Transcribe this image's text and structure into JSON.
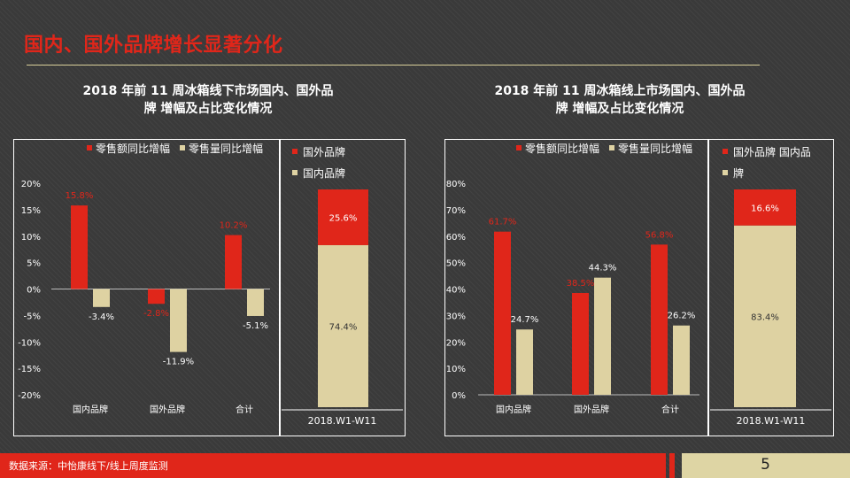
{
  "page": {
    "title": "国内、国外品牌增长显著分化",
    "source": "数据来源：中怡康线下/线上周度监测",
    "page_number": "5"
  },
  "colors": {
    "red": "#e0261a",
    "cream": "#ded2a2"
  },
  "chart_data": [
    {
      "type": "bar",
      "title": "2018 年前 11 周冰箱线下市场国内、国外品牌 增幅及占比变化情况",
      "title_lines": [
        "2018 年前 11 周冰箱线下市场国内、国外品",
        "牌 增幅及占比变化情况"
      ],
      "categories": [
        "国内品牌",
        "国外品牌",
        "合计"
      ],
      "series": [
        {
          "name": "零售额同比增幅",
          "values": [
            15.8,
            -2.8,
            10.2
          ],
          "labels": [
            "15.8%",
            "-2.8%",
            "10.2%"
          ]
        },
        {
          "name": "零售量同比增幅",
          "values": [
            -3.4,
            -11.9,
            -5.1
          ],
          "labels": [
            "-3.4%",
            "-11.9%",
            "-5.1%"
          ]
        }
      ],
      "yticks": [
        "20%",
        "15%",
        "10%",
        "5%",
        "0%",
        "-5%",
        "-10%",
        "-15%",
        "-20%"
      ],
      "ylim": [
        -20,
        20
      ],
      "share": {
        "type": "stacked-bar",
        "category": "2018.W1-W11",
        "legend": [
          "国外品牌",
          "国内品牌"
        ],
        "top": {
          "name": "国外品牌",
          "value": 25.6,
          "label": "25.6%"
        },
        "bottom": {
          "name": "国内品牌",
          "value": 74.4,
          "label": "74.4%"
        }
      }
    },
    {
      "type": "bar",
      "title": "2018 年前 11 周冰箱线上市场国内、国外品牌 增幅及占比变化情况",
      "title_lines": [
        "2018 年前 11 周冰箱线上市场国内、国外品",
        "牌 增幅及占比变化情况"
      ],
      "categories": [
        "国内品牌",
        "国外品牌",
        "合计"
      ],
      "series": [
        {
          "name": "零售额同比增幅",
          "values": [
            61.7,
            38.5,
            56.8
          ],
          "labels": [
            "61.7%",
            "38.5%",
            "56.8%"
          ]
        },
        {
          "name": "零售量同比增幅",
          "values": [
            24.7,
            44.3,
            26.2
          ],
          "labels": [
            "24.7%",
            "44.3%",
            "26.2%"
          ]
        }
      ],
      "yticks": [
        "80%",
        "70%",
        "60%",
        "50%",
        "40%",
        "30%",
        "20%",
        "10%",
        "0%"
      ],
      "ylim": [
        0,
        80
      ],
      "share": {
        "type": "stacked-bar",
        "category": "2018.W1-W11",
        "legend": [
          "国外品牌",
          "国内品牌"
        ],
        "legend_lines": [
          "国外品牌 国内品",
          "牌"
        ],
        "top": {
          "name": "国外品牌",
          "value": 16.6,
          "label": "16.6%"
        },
        "bottom": {
          "name": "国内品牌",
          "value": 83.4,
          "label": "83.4%"
        }
      }
    }
  ]
}
